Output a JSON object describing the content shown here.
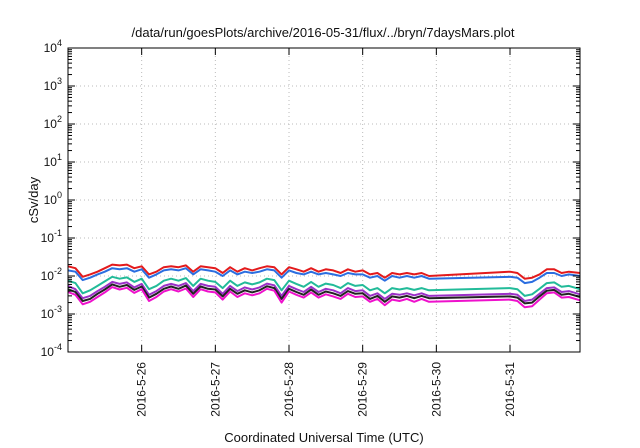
{
  "chart_data": {
    "type": "line",
    "title": "/data/run/goesPlots/archive/2016-05-31/flux/../bryn/7daysMars.plot",
    "xlabel": "Coordinated Universal Time (UTC)",
    "ylabel": "cSv/day",
    "yscale": "log",
    "ylim": [
      0.0001,
      10000
    ],
    "xlim": [
      0,
      6.95
    ],
    "grid": true,
    "x_ticks": [
      {
        "x": 1,
        "label": "2016-5-26"
      },
      {
        "x": 2,
        "label": "2016-5-27"
      },
      {
        "x": 3,
        "label": "2016-5-28"
      },
      {
        "x": 4,
        "label": "2016-5-29"
      },
      {
        "x": 5,
        "label": "2016-5-30"
      },
      {
        "x": 6,
        "label": "2016-5-31"
      }
    ],
    "y_ticks": [
      {
        "v": 0.0001,
        "base": "10",
        "exp": "-4"
      },
      {
        "v": 0.001,
        "base": "10",
        "exp": "-3"
      },
      {
        "v": 0.01,
        "base": "10",
        "exp": "-2"
      },
      {
        "v": 0.1,
        "base": "10",
        "exp": "-1"
      },
      {
        "v": 1,
        "base": "10",
        "exp": "0"
      },
      {
        "v": 10,
        "base": "10",
        "exp": "1"
      },
      {
        "v": 100,
        "base": "10",
        "exp": "2"
      },
      {
        "v": 1000,
        "base": "10",
        "exp": "3"
      },
      {
        "v": 10000,
        "base": "10",
        "exp": "4"
      }
    ],
    "x": [
      0,
      0.1,
      0.2,
      0.3,
      0.4,
      0.5,
      0.6,
      0.7,
      0.8,
      0.9,
      1.0,
      1.1,
      1.2,
      1.3,
      1.4,
      1.5,
      1.6,
      1.7,
      1.8,
      1.9,
      2.0,
      2.1,
      2.2,
      2.3,
      2.4,
      2.5,
      2.6,
      2.7,
      2.8,
      2.9,
      3.0,
      3.1,
      3.2,
      3.3,
      3.4,
      3.5,
      3.6,
      3.7,
      3.8,
      3.9,
      4.0,
      4.1,
      4.2,
      4.3,
      4.4,
      4.5,
      4.6,
      4.7,
      4.8,
      4.9,
      6.0,
      6.1,
      6.2,
      6.3,
      6.4,
      6.5,
      6.6,
      6.7,
      6.8,
      6.95
    ],
    "series": [
      {
        "name": "red",
        "color": "#e31a1c",
        "values": [
          0.018,
          0.016,
          0.0095,
          0.011,
          0.013,
          0.016,
          0.02,
          0.019,
          0.02,
          0.016,
          0.018,
          0.011,
          0.013,
          0.017,
          0.018,
          0.017,
          0.019,
          0.013,
          0.018,
          0.017,
          0.016,
          0.012,
          0.017,
          0.013,
          0.016,
          0.014,
          0.016,
          0.018,
          0.017,
          0.011,
          0.017,
          0.015,
          0.013,
          0.016,
          0.013,
          0.015,
          0.014,
          0.012,
          0.015,
          0.013,
          0.014,
          0.011,
          0.012,
          0.009,
          0.012,
          0.011,
          0.012,
          0.011,
          0.012,
          0.01,
          0.013,
          0.012,
          0.0085,
          0.009,
          0.011,
          0.015,
          0.015,
          0.012,
          0.013,
          0.012
        ]
      },
      {
        "name": "blue",
        "color": "#2b6ee0",
        "values": [
          0.014,
          0.013,
          0.0078,
          0.009,
          0.011,
          0.013,
          0.016,
          0.015,
          0.016,
          0.013,
          0.015,
          0.009,
          0.011,
          0.014,
          0.015,
          0.014,
          0.016,
          0.011,
          0.015,
          0.014,
          0.013,
          0.01,
          0.014,
          0.011,
          0.013,
          0.012,
          0.013,
          0.015,
          0.014,
          0.009,
          0.014,
          0.012,
          0.011,
          0.013,
          0.011,
          0.012,
          0.011,
          0.01,
          0.012,
          0.011,
          0.011,
          0.009,
          0.01,
          0.0075,
          0.01,
          0.009,
          0.01,
          0.009,
          0.01,
          0.0085,
          0.0095,
          0.009,
          0.0065,
          0.007,
          0.009,
          0.012,
          0.012,
          0.01,
          0.011,
          0.01
        ]
      },
      {
        "name": "teal",
        "color": "#22bb99",
        "values": [
          0.0075,
          0.0065,
          0.0035,
          0.0042,
          0.0055,
          0.0072,
          0.0095,
          0.0085,
          0.0092,
          0.007,
          0.0085,
          0.0045,
          0.0055,
          0.0075,
          0.0085,
          0.0075,
          0.0088,
          0.0055,
          0.0085,
          0.0075,
          0.007,
          0.0048,
          0.0075,
          0.0055,
          0.0068,
          0.006,
          0.0068,
          0.0085,
          0.0078,
          0.0042,
          0.0075,
          0.0062,
          0.0052,
          0.007,
          0.0052,
          0.0063,
          0.0058,
          0.0048,
          0.0065,
          0.0055,
          0.0058,
          0.0042,
          0.0048,
          0.0035,
          0.0048,
          0.0044,
          0.0048,
          0.0043,
          0.0048,
          0.0042,
          0.0048,
          0.0045,
          0.003,
          0.0033,
          0.0046,
          0.0065,
          0.0068,
          0.0052,
          0.0055,
          0.0045
        ]
      },
      {
        "name": "purple",
        "color": "#9b30c8",
        "values": [
          0.0055,
          0.0045,
          0.0026,
          0.003,
          0.004,
          0.0052,
          0.007,
          0.0062,
          0.0068,
          0.005,
          0.0062,
          0.0032,
          0.004,
          0.0055,
          0.0062,
          0.0055,
          0.0065,
          0.004,
          0.0062,
          0.0055,
          0.0052,
          0.0034,
          0.0055,
          0.004,
          0.005,
          0.0044,
          0.005,
          0.0063,
          0.0057,
          0.003,
          0.0055,
          0.0045,
          0.0038,
          0.0052,
          0.0038,
          0.0046,
          0.0042,
          0.0035,
          0.0048,
          0.004,
          0.0042,
          0.003,
          0.0035,
          0.0025,
          0.0034,
          0.0032,
          0.0035,
          0.0031,
          0.0035,
          0.003,
          0.0034,
          0.0032,
          0.0022,
          0.0024,
          0.0034,
          0.0048,
          0.005,
          0.0038,
          0.004,
          0.0033
        ]
      },
      {
        "name": "black",
        "color": "#222222",
        "values": [
          0.0045,
          0.0038,
          0.0022,
          0.0025,
          0.0034,
          0.0044,
          0.006,
          0.0052,
          0.0058,
          0.0043,
          0.0053,
          0.0027,
          0.0034,
          0.0046,
          0.0053,
          0.0046,
          0.0056,
          0.0034,
          0.0053,
          0.0046,
          0.0044,
          0.0029,
          0.0046,
          0.0034,
          0.0042,
          0.0037,
          0.0042,
          0.0054,
          0.0048,
          0.0025,
          0.0046,
          0.0038,
          0.0032,
          0.0044,
          0.0032,
          0.0039,
          0.0035,
          0.003,
          0.004,
          0.0034,
          0.0035,
          0.0025,
          0.003,
          0.0021,
          0.0029,
          0.0027,
          0.003,
          0.0026,
          0.003,
          0.0026,
          0.0029,
          0.0027,
          0.0019,
          0.002,
          0.0029,
          0.0041,
          0.0043,
          0.0032,
          0.0034,
          0.0028
        ]
      },
      {
        "name": "magenta",
        "color": "#ee11cc",
        "values": [
          0.0038,
          0.0032,
          0.0018,
          0.0021,
          0.0028,
          0.0037,
          0.0051,
          0.0044,
          0.0049,
          0.0036,
          0.0045,
          0.0022,
          0.0028,
          0.0039,
          0.0045,
          0.0039,
          0.0047,
          0.0028,
          0.0045,
          0.0039,
          0.0037,
          0.0024,
          0.0039,
          0.0028,
          0.0035,
          0.0031,
          0.0035,
          0.0046,
          0.0041,
          0.002,
          0.0039,
          0.0032,
          0.0027,
          0.0037,
          0.0027,
          0.0033,
          0.0029,
          0.0025,
          0.0034,
          0.0028,
          0.0029,
          0.0021,
          0.0025,
          0.0017,
          0.0024,
          0.0022,
          0.0025,
          0.0021,
          0.0025,
          0.0021,
          0.0024,
          0.0022,
          0.0015,
          0.0016,
          0.0024,
          0.0035,
          0.0037,
          0.0027,
          0.0028,
          0.0023
        ]
      }
    ]
  }
}
